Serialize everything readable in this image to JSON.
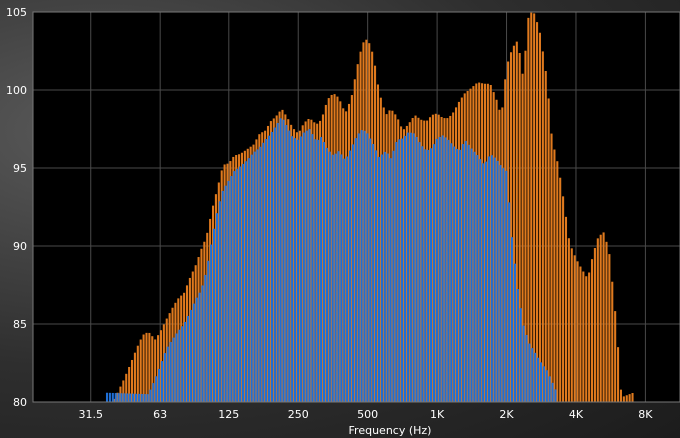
{
  "chart_data": {
    "type": "bar",
    "xlabel": "Frequency (Hz)",
    "ylabel": "",
    "xscale": "log",
    "xlim_hz": [
      17.7,
      11300
    ],
    "ylim": [
      80,
      105
    ],
    "yticks": [
      80,
      85,
      90,
      95,
      100,
      105
    ],
    "xticks": [
      {
        "hz": 31.5,
        "label": "31.5"
      },
      {
        "hz": 63,
        "label": "63"
      },
      {
        "hz": 125,
        "label": "125"
      },
      {
        "hz": 250,
        "label": "250"
      },
      {
        "hz": 500,
        "label": "500"
      },
      {
        "hz": 1000,
        "label": "1K"
      },
      {
        "hz": 2000,
        "label": "2K"
      },
      {
        "hz": 4000,
        "label": "4K"
      },
      {
        "hz": 8000,
        "label": "8K"
      }
    ],
    "grid": true,
    "background": "#000000",
    "series_colors": {
      "orange": "#e07a1e",
      "blue": "#1f6fd6"
    },
    "series": [
      {
        "color": "orange",
        "points": [
          [
            40,
            80.2
          ],
          [
            44,
            81.5
          ],
          [
            47,
            82.5
          ],
          [
            50,
            83.5
          ],
          [
            53,
            84.3
          ],
          [
            56,
            84.5
          ],
          [
            60,
            84
          ],
          [
            63,
            84.5
          ],
          [
            67,
            85.3
          ],
          [
            71,
            86
          ],
          [
            75,
            86.6
          ],
          [
            80,
            87
          ],
          [
            85,
            88
          ],
          [
            90,
            88.8
          ],
          [
            95,
            89.8
          ],
          [
            100,
            90.6
          ],
          [
            106,
            92.4
          ],
          [
            112,
            93.8
          ],
          [
            118,
            95.2
          ],
          [
            125,
            95.3
          ],
          [
            132,
            95.8
          ],
          [
            140,
            95.9
          ],
          [
            150,
            96.2
          ],
          [
            160,
            96.5
          ],
          [
            170,
            97.2
          ],
          [
            180,
            97.4
          ],
          [
            190,
            98
          ],
          [
            200,
            98.3
          ],
          [
            212,
            98.8
          ],
          [
            225,
            98.2
          ],
          [
            236,
            97.6
          ],
          [
            250,
            97.2
          ],
          [
            265,
            97.9
          ],
          [
            280,
            98.2
          ],
          [
            300,
            97.8
          ],
          [
            315,
            98.1
          ],
          [
            335,
            99.4
          ],
          [
            355,
            99.8
          ],
          [
            375,
            99.5
          ],
          [
            400,
            98.5
          ],
          [
            425,
            99.5
          ],
          [
            450,
            101.5
          ],
          [
            475,
            103
          ],
          [
            500,
            103.3
          ],
          [
            530,
            102.2
          ],
          [
            560,
            99.9
          ],
          [
            600,
            98.4
          ],
          [
            630,
            98.8
          ],
          [
            670,
            98.3
          ],
          [
            710,
            97.4
          ],
          [
            750,
            97.8
          ],
          [
            800,
            98.4
          ],
          [
            850,
            98.1
          ],
          [
            900,
            98
          ],
          [
            950,
            98.4
          ],
          [
            1000,
            98.5
          ],
          [
            1060,
            98.2
          ],
          [
            1120,
            98.2
          ],
          [
            1180,
            98.6
          ],
          [
            1250,
            99.3
          ],
          [
            1320,
            99.8
          ],
          [
            1400,
            100.1
          ],
          [
            1500,
            100.5
          ],
          [
            1600,
            100.4
          ],
          [
            1700,
            100.4
          ],
          [
            1800,
            99.5
          ],
          [
            1900,
            98.3
          ],
          [
            2000,
            101.5
          ],
          [
            2120,
            102.7
          ],
          [
            2240,
            103.2
          ],
          [
            2360,
            100.8
          ],
          [
            2500,
            105
          ],
          [
            2650,
            104.9
          ],
          [
            2800,
            103.6
          ],
          [
            3000,
            100.6
          ],
          [
            3150,
            96.8
          ],
          [
            3350,
            95.2
          ],
          [
            3550,
            92.8
          ],
          [
            3750,
            90.2
          ],
          [
            4000,
            89.2
          ],
          [
            4250,
            88.5
          ],
          [
            4500,
            87.9
          ],
          [
            4750,
            89.5
          ],
          [
            5000,
            90.6
          ],
          [
            5300,
            90.9
          ],
          [
            5600,
            89.4
          ],
          [
            6000,
            84.9
          ],
          [
            6300,
            80.3
          ],
          [
            7100,
            80.6
          ]
        ]
      },
      {
        "color": "blue",
        "points": [
          [
            36,
            80.6
          ],
          [
            56,
            80.5
          ],
          [
            60,
            81.5
          ],
          [
            63,
            82.3
          ],
          [
            67,
            83.4
          ],
          [
            71,
            84
          ],
          [
            75,
            84.5
          ],
          [
            80,
            85
          ],
          [
            85,
            85.8
          ],
          [
            90,
            86.6
          ],
          [
            95,
            87.2
          ],
          [
            100,
            88.4
          ],
          [
            106,
            90.5
          ],
          [
            112,
            92.4
          ],
          [
            118,
            93.6
          ],
          [
            125,
            94.2
          ],
          [
            132,
            94.8
          ],
          [
            140,
            95.1
          ],
          [
            150,
            95.5
          ],
          [
            160,
            96
          ],
          [
            170,
            96.3
          ],
          [
            180,
            96.8
          ],
          [
            190,
            97.2
          ],
          [
            200,
            97.7
          ],
          [
            212,
            98.3
          ],
          [
            225,
            97.6
          ],
          [
            236,
            97
          ],
          [
            250,
            96.8
          ],
          [
            265,
            97.3
          ],
          [
            280,
            97.5
          ],
          [
            300,
            96.7
          ],
          [
            315,
            97
          ],
          [
            335,
            96.2
          ],
          [
            355,
            95.8
          ],
          [
            375,
            96.1
          ],
          [
            400,
            95.5
          ],
          [
            425,
            96.3
          ],
          [
            450,
            97.1
          ],
          [
            475,
            97.5
          ],
          [
            500,
            97.2
          ],
          [
            530,
            96.5
          ],
          [
            560,
            95.7
          ],
          [
            600,
            96.1
          ],
          [
            630,
            95.6
          ],
          [
            670,
            96.8
          ],
          [
            710,
            96.9
          ],
          [
            750,
            97.3
          ],
          [
            800,
            97.2
          ],
          [
            850,
            96.5
          ],
          [
            900,
            96.1
          ],
          [
            950,
            96.3
          ],
          [
            1000,
            96.9
          ],
          [
            1060,
            97.1
          ],
          [
            1120,
            96.8
          ],
          [
            1180,
            96.4
          ],
          [
            1250,
            96.1
          ],
          [
            1320,
            96.8
          ],
          [
            1400,
            96.3
          ],
          [
            1500,
            95.8
          ],
          [
            1600,
            95.2
          ],
          [
            1700,
            95.9
          ],
          [
            1800,
            95.6
          ],
          [
            1900,
            95.1
          ],
          [
            2000,
            94.8
          ],
          [
            2120,
            90.3
          ],
          [
            2240,
            87.2
          ],
          [
            2360,
            85
          ],
          [
            2500,
            83.8
          ],
          [
            2650,
            83.2
          ],
          [
            2800,
            82.6
          ],
          [
            3000,
            82
          ],
          [
            3150,
            81.3
          ],
          [
            3350,
            80.4
          ]
        ]
      }
    ]
  }
}
